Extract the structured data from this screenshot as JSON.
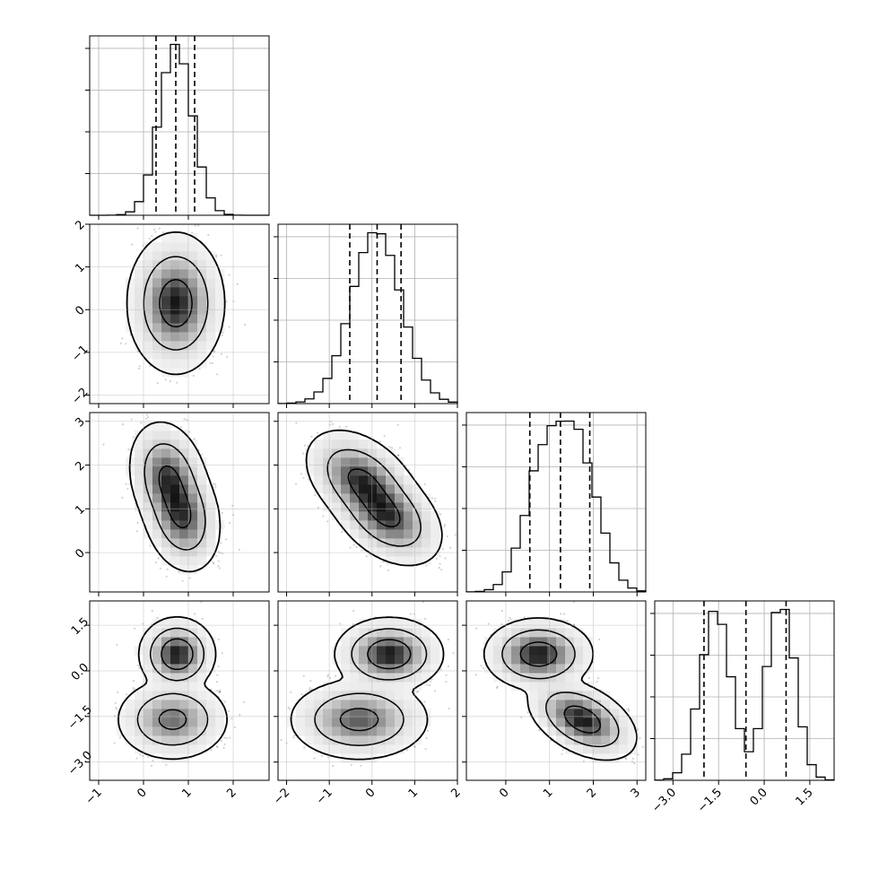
{
  "chart_data": {
    "type": "corner",
    "grid": true,
    "xlabel": "",
    "ylabel": "",
    "parameters": [
      {
        "range": [
          -1.2,
          2.8
        ],
        "ticks": [
          -1,
          0,
          1,
          2
        ],
        "tick_labels": [
          "−1",
          "0",
          "1",
          "2"
        ],
        "quantiles": [
          0.28,
          0.72,
          1.14
        ],
        "mixture": [
          {
            "w": 1.0,
            "mean": 0.72,
            "sd": 0.36
          }
        ]
      },
      {
        "range": [
          -2.2,
          2.0
        ],
        "ticks": [
          -2,
          -1,
          0,
          1,
          2
        ],
        "tick_labels": [
          "−2",
          "−1",
          "0",
          "1",
          "2"
        ],
        "quantiles": [
          -0.52,
          0.12,
          0.68
        ],
        "mixture": [
          {
            "w": 1.0,
            "mean": 0.1,
            "sd": 0.58
          }
        ]
      },
      {
        "range": [
          -0.9,
          3.2
        ],
        "ticks": [
          0,
          1,
          2,
          3
        ],
        "tick_labels": [
          "0",
          "1",
          "2",
          "3"
        ],
        "quantiles": [
          0.55,
          1.25,
          1.92
        ],
        "mixture": [
          {
            "w": 0.5,
            "mean": 0.9,
            "sd": 0.45
          },
          {
            "w": 0.5,
            "mean": 1.7,
            "sd": 0.45
          }
        ]
      },
      {
        "range": [
          -3.6,
          2.3
        ],
        "ticks": [
          -3.0,
          -1.5,
          0.0,
          1.5
        ],
        "tick_labels": [
          "−3.0",
          "−1.5",
          "0.0",
          "1.5"
        ],
        "quantiles": [
          -1.98,
          -0.6,
          0.72
        ],
        "mixture": [
          {
            "w": 0.5,
            "mean": -1.6,
            "sd": 0.5
          },
          {
            "w": 0.5,
            "mean": 0.55,
            "sd": 0.45
          }
        ]
      }
    ],
    "pairs": [
      {
        "row": 1,
        "col": 0,
        "clusters": [
          {
            "w": 1.0,
            "mx": 0.72,
            "my": 0.15,
            "sx": 0.36,
            "sy": 0.55,
            "rho": 0.0
          }
        ]
      },
      {
        "row": 2,
        "col": 0,
        "clusters": [
          {
            "w": 0.5,
            "mx": 0.55,
            "my": 1.7,
            "sx": 0.3,
            "sy": 0.45,
            "rho": -0.2
          },
          {
            "w": 0.5,
            "mx": 0.85,
            "my": 0.85,
            "sx": 0.3,
            "sy": 0.45,
            "rho": -0.2
          }
        ]
      },
      {
        "row": 2,
        "col": 1,
        "clusters": [
          {
            "w": 0.5,
            "mx": -0.25,
            "my": 1.65,
            "sx": 0.45,
            "sy": 0.4,
            "rho": -0.4
          },
          {
            "w": 0.5,
            "mx": 0.35,
            "my": 0.85,
            "sx": 0.45,
            "sy": 0.4,
            "rho": -0.4
          }
        ]
      },
      {
        "row": 3,
        "col": 0,
        "clusters": [
          {
            "w": 0.5,
            "mx": 0.75,
            "my": 0.55,
            "sx": 0.28,
            "sy": 0.4,
            "rho": 0.0
          },
          {
            "w": 0.5,
            "mx": 0.65,
            "my": -1.6,
            "sx": 0.42,
            "sy": 0.45,
            "rho": 0.0
          }
        ]
      },
      {
        "row": 3,
        "col": 1,
        "clusters": [
          {
            "w": 0.5,
            "mx": 0.4,
            "my": 0.55,
            "sx": 0.42,
            "sy": 0.4,
            "rho": 0.0
          },
          {
            "w": 0.5,
            "mx": -0.3,
            "my": -1.6,
            "sx": 0.55,
            "sy": 0.45,
            "rho": 0.0
          }
        ]
      },
      {
        "row": 3,
        "col": 2,
        "clusters": [
          {
            "w": 0.5,
            "mx": 0.75,
            "my": 0.55,
            "sx": 0.42,
            "sy": 0.4,
            "rho": 0.0
          },
          {
            "w": 0.5,
            "mx": 1.75,
            "my": -1.6,
            "sx": 0.42,
            "sy": 0.45,
            "rho": -0.45
          }
        ]
      }
    ],
    "contour_levels": [
      0.39,
      0.86,
      0.99
    ],
    "quantile_line_style": "dashed"
  }
}
